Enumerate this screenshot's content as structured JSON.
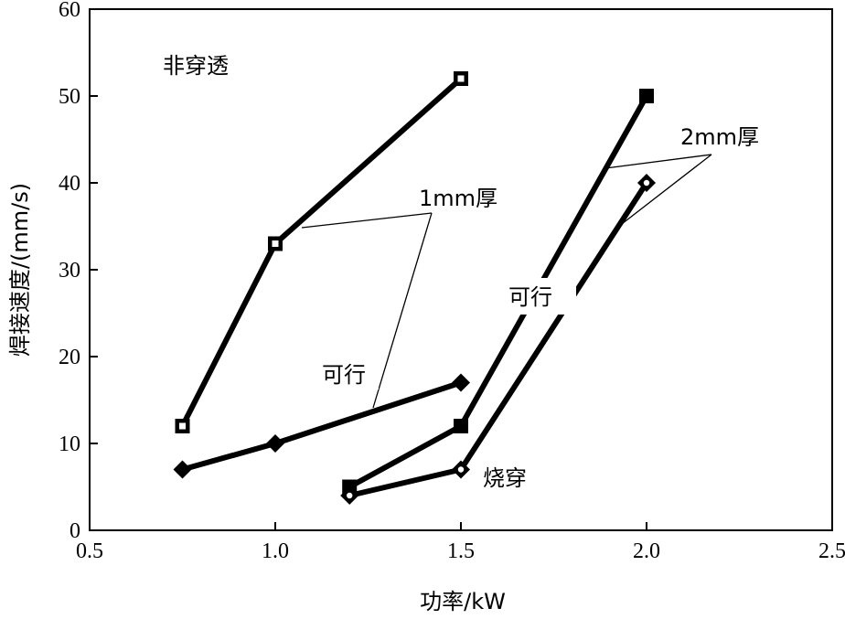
{
  "chart_data": {
    "type": "line",
    "title": "",
    "xlabel": "功率/kW",
    "ylabel": "焊接速度/(mm/s)",
    "xlim": [
      0.5,
      2.5
    ],
    "ylim": [
      0,
      60
    ],
    "xticks": [
      0.5,
      1.0,
      1.5,
      2.0,
      2.5
    ],
    "xtick_labels": [
      "0.5",
      "1.0",
      "1.5",
      "2.0",
      "2.5"
    ],
    "yticks": [
      0,
      10,
      20,
      30,
      40,
      50,
      60
    ],
    "ytick_labels": [
      "0",
      "10",
      "20",
      "30",
      "40",
      "50",
      "60"
    ],
    "grid": false,
    "series": [
      {
        "marker": "square-open",
        "x": [
          0.75,
          1.0,
          1.5
        ],
        "y": [
          12,
          33,
          52
        ]
      },
      {
        "marker": "diamond",
        "x": [
          0.75,
          1.0,
          1.5
        ],
        "y": [
          7,
          10,
          17
        ]
      },
      {
        "marker": "square",
        "x": [
          1.2,
          1.5,
          2.0
        ],
        "y": [
          5,
          12,
          50
        ]
      },
      {
        "marker": "diamond-open",
        "x": [
          1.2,
          1.5,
          2.0
        ],
        "y": [
          4,
          7,
          40
        ]
      }
    ],
    "annotations": {
      "non_penetration": "非穿透",
      "thickness_1mm": "1mm厚",
      "feasible_1mm": "可行",
      "thickness_2mm": "2mm厚",
      "feasible_2mm": "可行",
      "burn_through": "烧穿"
    }
  }
}
